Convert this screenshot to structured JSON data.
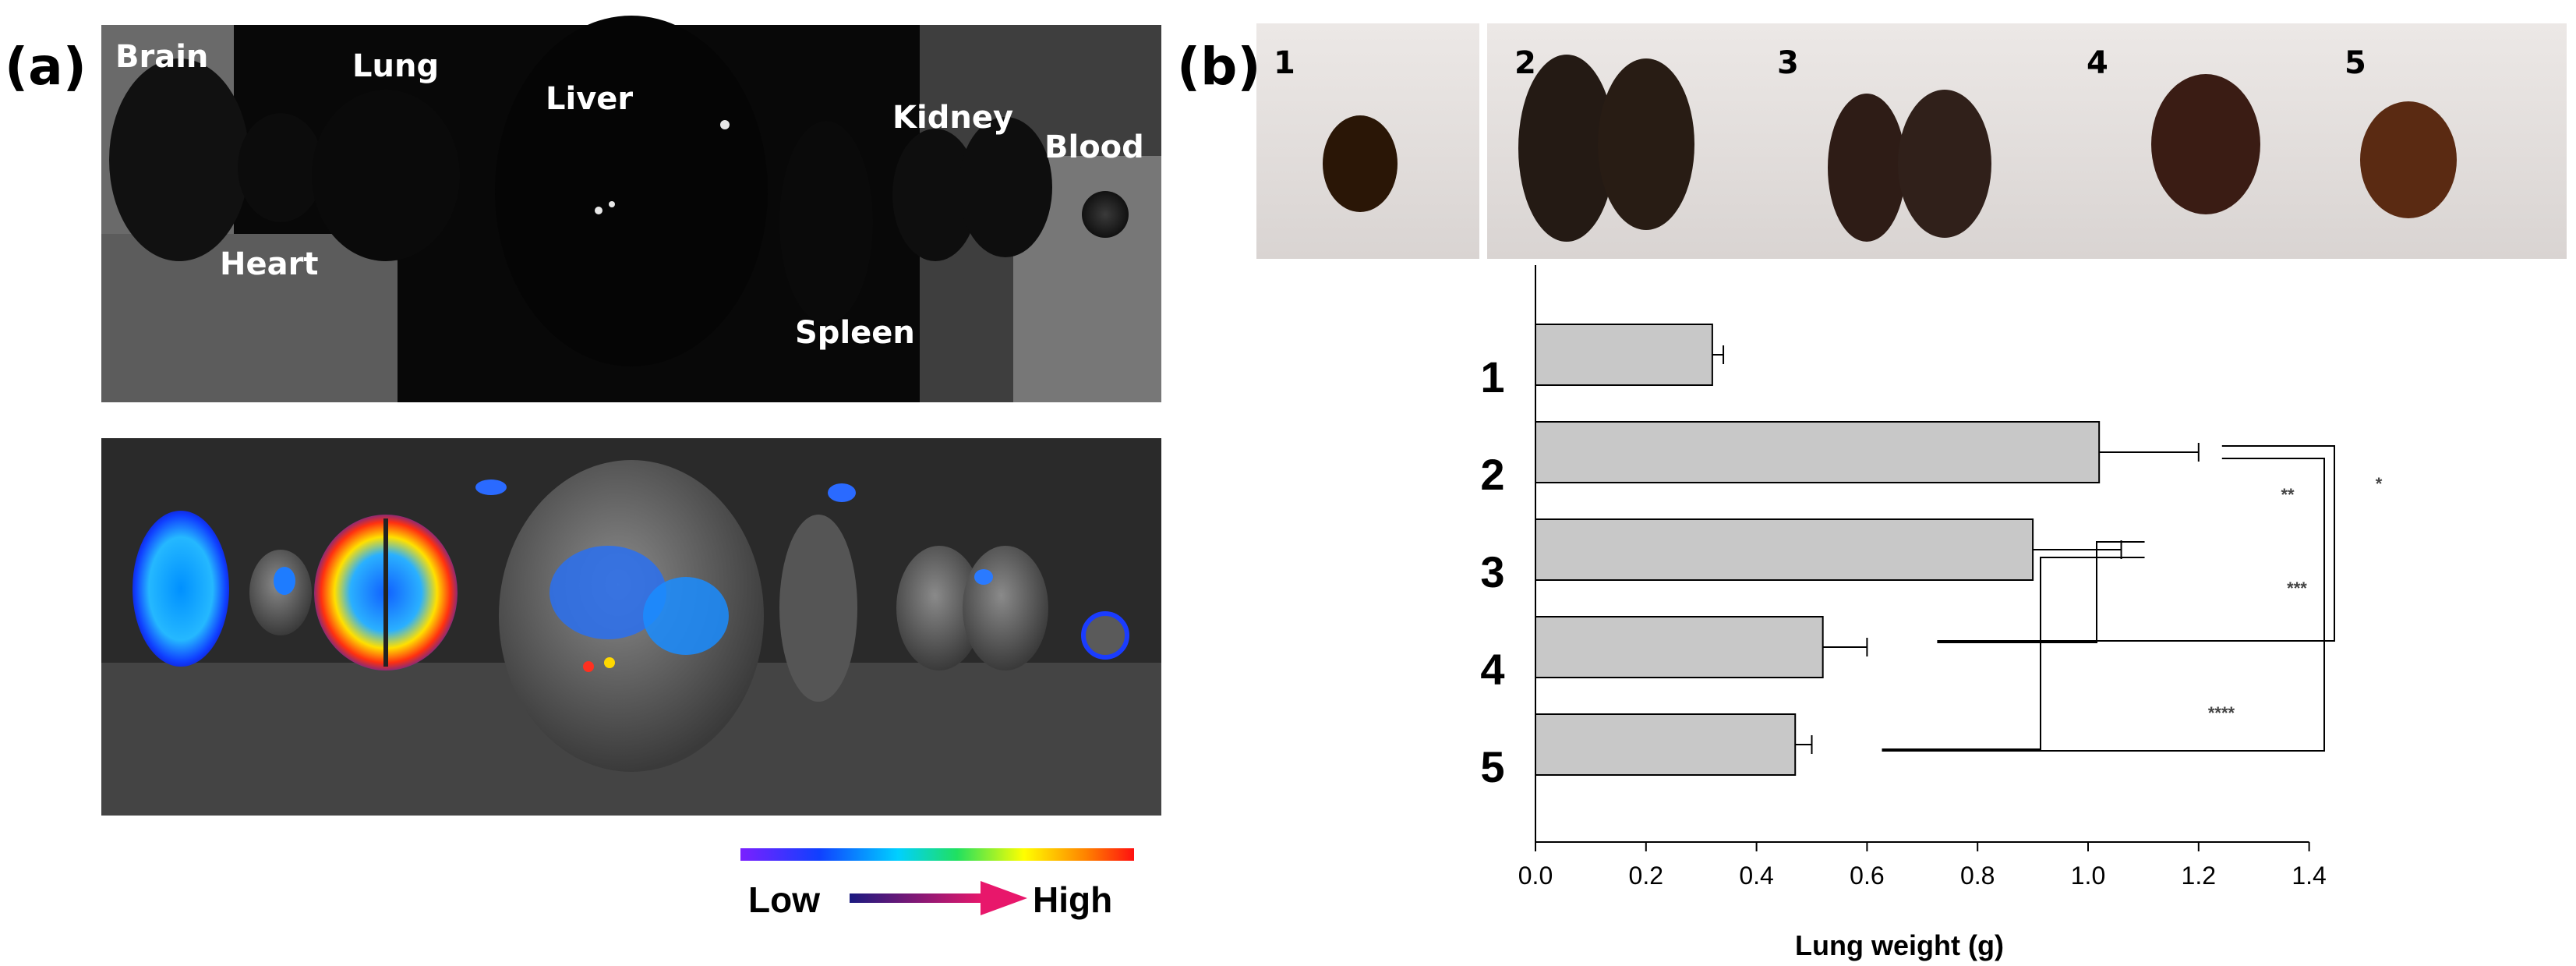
{
  "panel_a": {
    "label": "(a)",
    "organs": [
      "Brain",
      "Lung",
      "Liver",
      "Kidney",
      "Blood",
      "Heart",
      "Spleen"
    ],
    "colorbar": {
      "low_label": "Low",
      "high_label": "High"
    }
  },
  "panel_b": {
    "label": "(b)",
    "photo_labels": [
      "1",
      "2",
      "3",
      "4",
      "5"
    ]
  },
  "colors": {
    "bar_fill": "#c8c8c8",
    "arrow_start": "#1a1a80",
    "arrow_end": "#e8176b"
  },
  "chart_data": {
    "type": "bar",
    "orientation": "horizontal",
    "categories": [
      "1",
      "2",
      "3",
      "4",
      "5"
    ],
    "values": [
      0.32,
      1.02,
      0.9,
      0.52,
      0.47
    ],
    "errors": [
      0.02,
      0.18,
      0.16,
      0.08,
      0.03
    ],
    "xlabel": "Lung weight (g)",
    "ylabel": "",
    "xlim": [
      0.0,
      1.4
    ],
    "xticks": [
      "0.0",
      "0.2",
      "0.4",
      "0.6",
      "0.8",
      "1.0",
      "1.2",
      "1.4"
    ],
    "significance": [
      {
        "pair": [
          "2",
          "4"
        ],
        "label": "*"
      },
      {
        "pair": [
          "2",
          "5"
        ],
        "label": "**"
      },
      {
        "pair": [
          "3",
          "4"
        ],
        "label": "***"
      },
      {
        "pair": [
          "3",
          "5"
        ],
        "label": "****"
      }
    ]
  }
}
